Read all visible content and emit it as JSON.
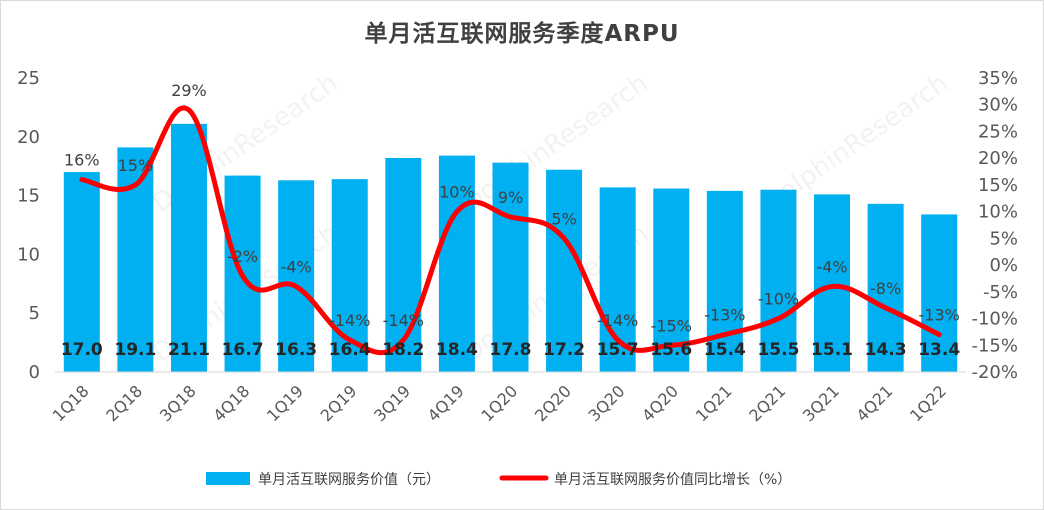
{
  "chart_data": {
    "type": "bar+line",
    "title": "单月活互联网服务季度ARPU",
    "categories": [
      "1Q18",
      "2Q18",
      "3Q18",
      "4Q18",
      "1Q19",
      "2Q19",
      "3Q19",
      "4Q19",
      "1Q20",
      "2Q20",
      "3Q20",
      "4Q20",
      "1Q21",
      "2Q21",
      "3Q21",
      "4Q21",
      "1Q22"
    ],
    "series": [
      {
        "name": "单月活互联网服务价值（元）",
        "type": "bar",
        "axis": "left",
        "color": "#00b0f0",
        "values": [
          17.0,
          19.1,
          21.1,
          16.7,
          16.3,
          16.4,
          18.2,
          18.4,
          17.8,
          17.2,
          15.7,
          15.6,
          15.4,
          15.5,
          15.1,
          14.3,
          13.4
        ],
        "labels": [
          "17.0",
          "19.1",
          "21.1",
          "16.7",
          "16.3",
          "16.4",
          "18.2",
          "18.4",
          "17.8",
          "17.2",
          "15.7",
          "15.6",
          "15.4",
          "15.5",
          "15.1",
          "14.3",
          "13.4"
        ]
      },
      {
        "name": "单月活互联网服务价值同比增长（%）",
        "type": "line",
        "axis": "right",
        "color": "#ff0000",
        "values": [
          16,
          15,
          29,
          -2,
          -4,
          -14,
          -14,
          10,
          9,
          5,
          -14,
          -15,
          -13,
          -10,
          -4,
          -8,
          -13
        ],
        "labels": [
          "16%",
          "15%",
          "29%",
          "-2%",
          "-4%",
          "-14%",
          "-14%",
          "10%",
          "9%",
          "5%",
          "-14%",
          "-15%",
          "-13%",
          "-10%",
          "-4%",
          "-8%",
          "-13%"
        ]
      }
    ],
    "left_axis": {
      "min": 0,
      "max": 25,
      "step": 5,
      "ticks": [
        "0",
        "5",
        "10",
        "15",
        "20",
        "25"
      ]
    },
    "right_axis": {
      "min": -20,
      "max": 35,
      "step": 5,
      "ticks": [
        "-20%",
        "-15%",
        "-10%",
        "-5%",
        "0%",
        "5%",
        "10%",
        "15%",
        "20%",
        "25%",
        "30%",
        "35%"
      ]
    },
    "grid": false,
    "legend": "bottom",
    "watermark": "DolphinResearch"
  }
}
